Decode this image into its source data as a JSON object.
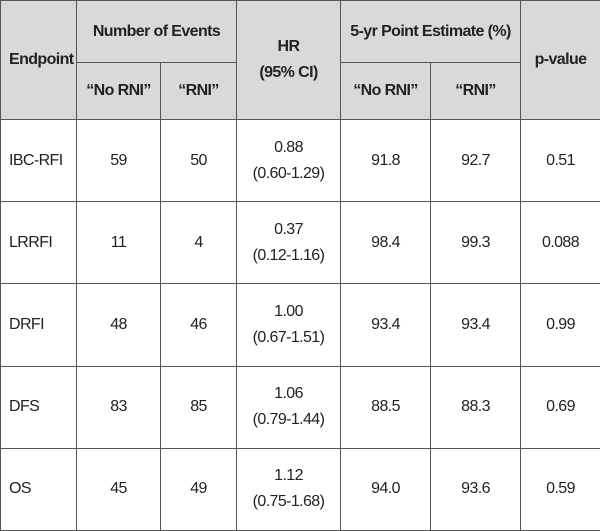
{
  "table": {
    "header": {
      "endpoint": "Endpoint",
      "events_group": "Number of Events",
      "hr_line1": "HR",
      "hr_line2": "(95% CI)",
      "estimate_group": "5-yr Point Estimate (%)",
      "pvalue": "p-value",
      "sub": [
        "“No RNI”",
        "“RNI”",
        "“No RNI”",
        "“RNI”"
      ]
    },
    "rows": [
      {
        "endpoint": "IBC-RFI",
        "events_no": "59",
        "events_rni": "50",
        "hr": "0.88",
        "ci": "(0.60-1.29)",
        "est_no": "91.8",
        "est_rni": "92.7",
        "p": "0.51"
      },
      {
        "endpoint": "LRRFI",
        "events_no": "11",
        "events_rni": "4",
        "hr": "0.37",
        "ci": "(0.12-1.16)",
        "est_no": "98.4",
        "est_rni": "99.3",
        "p": "0.088"
      },
      {
        "endpoint": "DRFI",
        "events_no": "48",
        "events_rni": "46",
        "hr": "1.00",
        "ci": "(0.67-1.51)",
        "est_no": "93.4",
        "est_rni": "93.4",
        "p": "0.99"
      },
      {
        "endpoint": "DFS",
        "events_no": "83",
        "events_rni": "85",
        "hr": "1.06",
        "ci": "(0.79-1.44)",
        "est_no": "88.5",
        "est_rni": "88.3",
        "p": "0.69"
      },
      {
        "endpoint": "OS",
        "events_no": "45",
        "events_rni": "49",
        "hr": "1.12",
        "ci": "(0.75-1.68)",
        "est_no": "94.0",
        "est_rni": "93.6",
        "p": "0.59"
      }
    ]
  }
}
